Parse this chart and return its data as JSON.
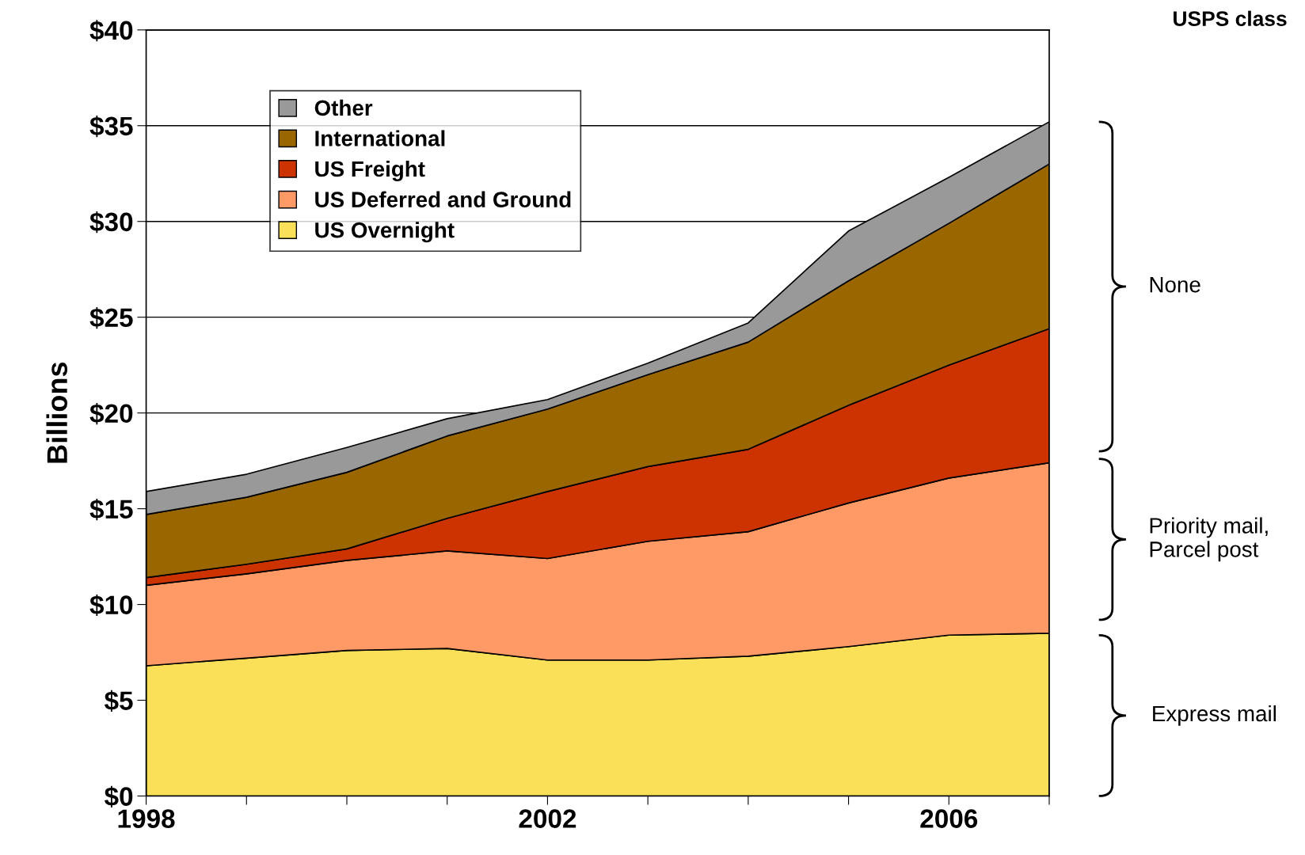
{
  "chart_data": {
    "type": "area",
    "stacked": true,
    "ylabel": "Billions",
    "x": [
      1998,
      1999,
      2000,
      2001,
      2002,
      2003,
      2004,
      2005,
      2006,
      2007
    ],
    "series": [
      {
        "name": "US Overnight",
        "color": "#f9e058",
        "values": [
          6.8,
          7.2,
          7.6,
          7.7,
          7.1,
          7.1,
          7.3,
          7.8,
          8.4,
          8.5
        ]
      },
      {
        "name": "US Deferred and Ground",
        "color": "#ff9966",
        "values": [
          4.2,
          4.4,
          4.7,
          5.1,
          5.3,
          6.2,
          6.5,
          7.5,
          8.2,
          8.9
        ]
      },
      {
        "name": "US Freight",
        "color": "#cc3300",
        "values": [
          0.4,
          0.5,
          0.6,
          1.7,
          3.5,
          3.9,
          4.3,
          5.1,
          5.9,
          7.0
        ]
      },
      {
        "name": "International",
        "color": "#996600",
        "values": [
          3.3,
          3.5,
          4.0,
          4.3,
          4.3,
          4.8,
          5.6,
          6.5,
          7.4,
          8.6
        ]
      },
      {
        "name": "Other",
        "color": "#999999",
        "values": [
          1.2,
          1.2,
          1.3,
          0.9,
          0.5,
          0.6,
          1.0,
          2.6,
          2.4,
          2.2
        ]
      }
    ],
    "xlim": [
      1998,
      2007
    ],
    "xticks": [
      1998,
      {
        "value": 1999,
        "label": null
      },
      {
        "value": 2000,
        "label": null
      },
      {
        "value": 2001,
        "label": null
      },
      2002,
      {
        "value": 2003,
        "label": null
      },
      {
        "value": 2004,
        "label": null
      },
      {
        "value": 2005,
        "label": null
      },
      2006,
      {
        "value": 2007,
        "label": null
      }
    ],
    "ylim": [
      0,
      40
    ],
    "yticks": [
      {
        "value": 0,
        "label": "$0"
      },
      {
        "value": 5,
        "label": "$5"
      },
      {
        "value": 10,
        "label": "$10"
      },
      {
        "value": 15,
        "label": "$15"
      },
      {
        "value": 20,
        "label": "$20"
      },
      {
        "value": 25,
        "label": "$25"
      },
      {
        "value": 30,
        "label": "$30"
      },
      {
        "value": 35,
        "label": "$35"
      },
      {
        "value": 40,
        "label": "$40"
      }
    ],
    "grid": "y",
    "legend": "top left",
    "annotations": [
      "USPS class",
      "None",
      "Priority mail,\nParcel post",
      "Express mail"
    ]
  }
}
